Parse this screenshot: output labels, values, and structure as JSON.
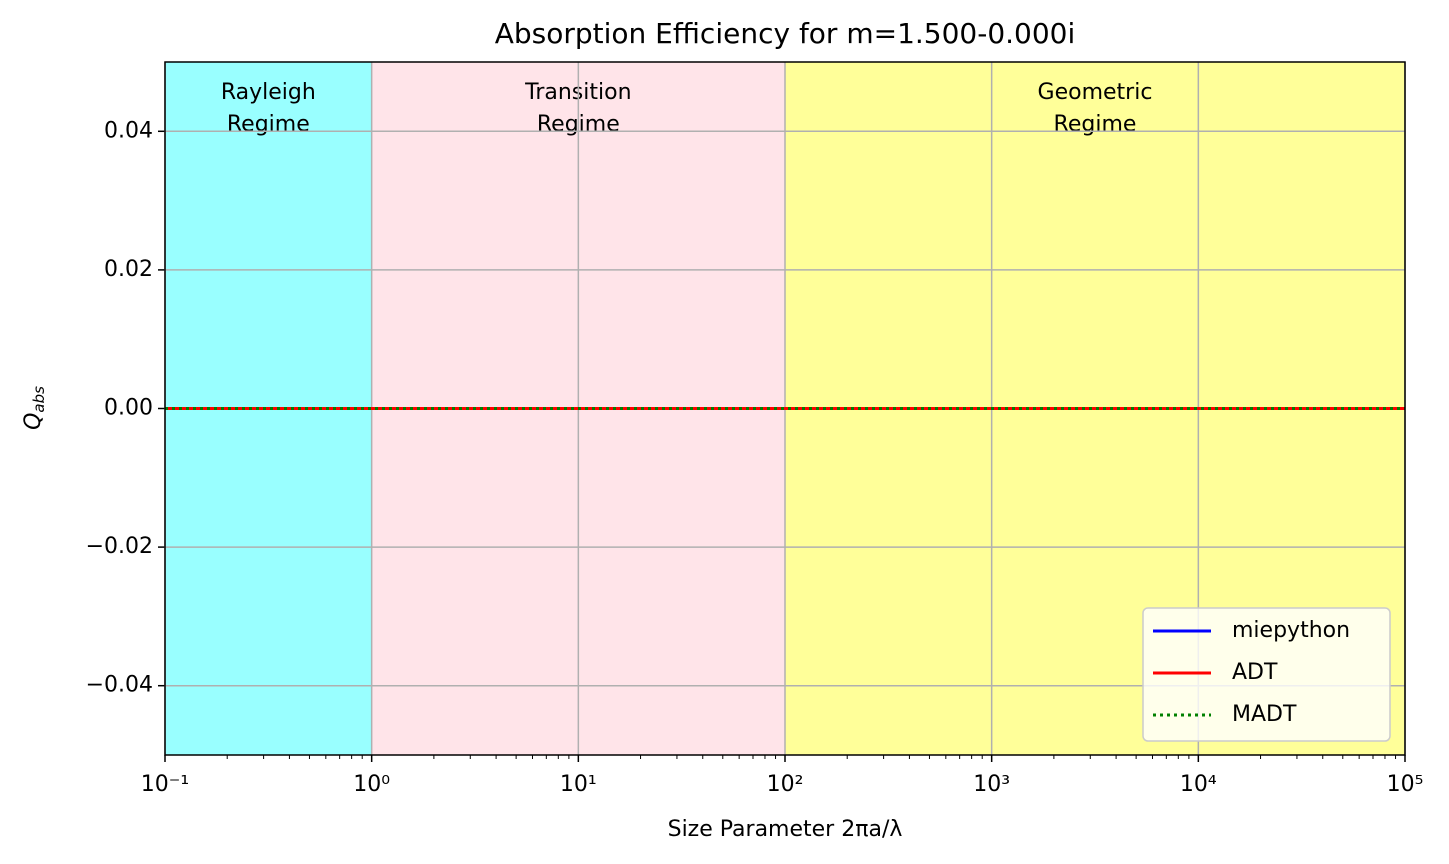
{
  "chart_data": {
    "type": "line",
    "title": "Absorption Efficiency for m=1.500-0.000i",
    "xlabel": "Size Parameter 2πa/λ",
    "ylabel": {
      "main": "Q",
      "sub": "abs"
    },
    "xscale": "log",
    "x": [
      0.1,
      1,
      10,
      100,
      1000,
      10000,
      100000
    ],
    "series": [
      {
        "name": "miepython",
        "color": "#0000ff",
        "style": "solid",
        "values": [
          0,
          0,
          0,
          0,
          0,
          0,
          0
        ]
      },
      {
        "name": "ADT",
        "color": "#ff0000",
        "style": "solid",
        "values": [
          0,
          0,
          0,
          0,
          0,
          0,
          0
        ]
      },
      {
        "name": "MADT",
        "color": "#008000",
        "style": "dotted",
        "values": [
          0,
          0,
          0,
          0,
          0,
          0,
          0
        ]
      }
    ],
    "regions": [
      {
        "label": [
          "Rayleigh",
          "Regime"
        ],
        "xlim": [
          0.1,
          1
        ],
        "color": "#99ffff"
      },
      {
        "label": [
          "Transition",
          "Regime"
        ],
        "xlim": [
          1,
          100
        ],
        "color": "#ffe4e9"
      },
      {
        "label": [
          "Geometric",
          "Regime"
        ],
        "xlim": [
          100,
          100000
        ],
        "color": "#ffff99"
      }
    ],
    "xlim": [
      0.1,
      100000
    ],
    "ylim": [
      -0.05,
      0.05
    ],
    "xticks": [
      {
        "value": 0.1,
        "label": "10⁻¹"
      },
      {
        "value": 1,
        "label": "10⁰"
      },
      {
        "value": 10,
        "label": "10¹"
      },
      {
        "value": 100,
        "label": "10²"
      },
      {
        "value": 1000,
        "label": "10³"
      },
      {
        "value": 10000,
        "label": "10⁴"
      },
      {
        "value": 100000,
        "label": "10⁵"
      }
    ],
    "yticks": [
      {
        "value": -0.04,
        "label": "−0.04"
      },
      {
        "value": -0.02,
        "label": "−0.02"
      },
      {
        "value": 0,
        "label": "0.00"
      },
      0.02,
      0.04
    ],
    "grid": true,
    "legend": "lower right"
  }
}
